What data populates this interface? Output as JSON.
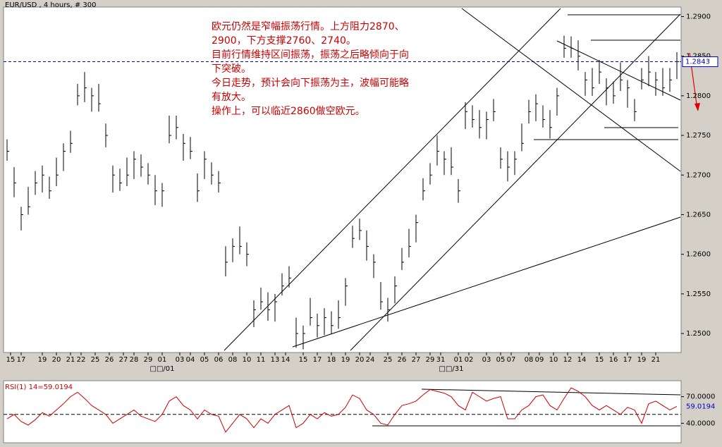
{
  "chart_data": [
    {
      "type": "ohlc",
      "title": "EUR/USD , 4 hours, # 300",
      "annotation": [
        "欧元仍然是窄幅振荡行情。上方阻力2870、",
        "2900，下方支撑2760、2740。",
        "目前行情维持区间振荡，振荡之后略倾向于向",
        "下突破。",
        "今日走势，预计会向下振荡为主，波幅可能略",
        "有放大。",
        "操作上，可以临近2860做空欧元。"
      ],
      "color": "#000000",
      "last_color": "#0000cc",
      "ylim": [
        1.2476,
        1.2912
      ],
      "yticks": [
        {
          "value": 1.25,
          "label": "1.2500"
        },
        {
          "value": 1.255,
          "label": "1.2550"
        },
        {
          "value": 1.26,
          "label": "1.2600"
        },
        {
          "value": 1.265,
          "label": "1.2650"
        },
        {
          "value": 1.27,
          "label": "1.2700"
        },
        {
          "value": 1.275,
          "label": "1.2750"
        },
        {
          "value": 1.28,
          "label": "1.2800"
        },
        {
          "value": 1.285,
          "label": "1.2850"
        },
        {
          "value": 1.29,
          "label": "1.2900"
        }
      ],
      "xticks": [
        {
          "value": 0.5,
          "label": "15"
        },
        {
          "value": 2,
          "label": "17"
        },
        {
          "value": 5,
          "label": "19"
        },
        {
          "value": 7,
          "label": "20"
        },
        {
          "value": 9,
          "label": "21"
        },
        {
          "value": 10.5,
          "label": "22"
        },
        {
          "value": 12.5,
          "label": "25"
        },
        {
          "value": 14.5,
          "label": "26"
        },
        {
          "value": 16.5,
          "label": "27"
        },
        {
          "value": 18,
          "label": "28"
        },
        {
          "value": 20,
          "label": "29"
        },
        {
          "value": 22,
          "label": "01"
        },
        {
          "value": 24.5,
          "label": "03"
        },
        {
          "value": 26,
          "label": "04"
        },
        {
          "value": 28,
          "label": "05"
        },
        {
          "value": 30,
          "label": "06"
        },
        {
          "value": 32,
          "label": "08"
        },
        {
          "value": 34,
          "label": "10"
        },
        {
          "value": 36,
          "label": "11"
        },
        {
          "value": 38,
          "label": "13"
        },
        {
          "value": 39.5,
          "label": "14"
        },
        {
          "value": 42,
          "label": "15"
        },
        {
          "value": 44,
          "label": "17"
        },
        {
          "value": 46,
          "label": "18"
        },
        {
          "value": 48,
          "label": "19"
        },
        {
          "value": 50,
          "label": "20"
        },
        {
          "value": 51.5,
          "label": "24"
        },
        {
          "value": 54,
          "label": "25"
        },
        {
          "value": 56,
          "label": "26"
        },
        {
          "value": 58,
          "label": "27"
        },
        {
          "value": 60,
          "label": "29"
        },
        {
          "value": 61.5,
          "label": "31"
        },
        {
          "value": 64,
          "label": "01"
        },
        {
          "value": 65.5,
          "label": "02"
        },
        {
          "value": 68,
          "label": "03"
        },
        {
          "value": 70,
          "label": "05"
        },
        {
          "value": 71.5,
          "label": "07"
        },
        {
          "value": 74,
          "label": "08"
        },
        {
          "value": 75.5,
          "label": "09"
        },
        {
          "value": 77.5,
          "label": "10"
        },
        {
          "value": 79.5,
          "label": "12"
        },
        {
          "value": 81.5,
          "label": "14"
        },
        {
          "value": 84,
          "label": "15"
        },
        {
          "value": 86,
          "label": "16"
        },
        {
          "value": 88,
          "label": "17"
        },
        {
          "value": 90,
          "label": "19"
        },
        {
          "value": 92,
          "label": "21"
        }
      ],
      "xticks2": [
        {
          "value": 22,
          "label": "□□/01"
        },
        {
          "value": 63,
          "label": "□□/31"
        }
      ],
      "high": [
        1.2745,
        1.271,
        1.266,
        1.2685,
        1.2705,
        1.2712,
        1.2698,
        1.2722,
        1.274,
        1.2756,
        1.2815,
        1.283,
        1.281,
        1.2815,
        1.2765,
        1.2712,
        1.2708,
        1.2722,
        1.273,
        1.2726,
        1.2715,
        1.27,
        1.269,
        1.2775,
        1.2775,
        1.2752,
        1.2748,
        1.2702,
        1.273,
        1.2716,
        1.2705,
        1.261,
        1.262,
        1.2635,
        1.2615,
        1.2542,
        1.2558,
        1.2552,
        1.255,
        1.2576,
        1.2585,
        1.252,
        1.251,
        1.2545,
        1.2525,
        1.2532,
        1.2528,
        1.2542,
        1.257,
        1.2636,
        1.2645,
        1.263,
        1.26,
        1.2565,
        1.2545,
        1.2572,
        1.2608,
        1.2632,
        1.265,
        1.2696,
        1.2715,
        1.275,
        1.273,
        1.2735,
        1.2695,
        1.2792,
        1.2788,
        1.2782,
        1.278,
        1.2796,
        1.2735,
        1.273,
        1.273,
        1.2765,
        1.2795,
        1.2802,
        1.2788,
        1.2782,
        1.281,
        1.2876,
        1.2875,
        1.287,
        1.283,
        1.2835,
        1.2845,
        1.2822,
        1.2818,
        1.2842,
        1.282,
        1.2796,
        1.2835,
        1.285,
        1.283,
        1.2835,
        1.2835,
        1.2855
      ],
      "low": [
        1.2718,
        1.2672,
        1.263,
        1.265,
        1.2675,
        1.2678,
        1.267,
        1.2686,
        1.2705,
        1.2728,
        1.2788,
        1.2792,
        1.278,
        1.278,
        1.2735,
        1.2678,
        1.268,
        1.2686,
        1.2695,
        1.2698,
        1.2688,
        1.2662,
        1.266,
        1.274,
        1.2745,
        1.2718,
        1.272,
        1.2666,
        1.2695,
        1.2688,
        1.2678,
        1.2572,
        1.259,
        1.26,
        1.2585,
        1.2508,
        1.253,
        1.2516,
        1.2515,
        1.2548,
        1.2558,
        1.2482,
        1.248,
        1.251,
        1.2495,
        1.2498,
        1.25,
        1.2506,
        1.2535,
        1.2608,
        1.2618,
        1.2592,
        1.257,
        1.253,
        1.2515,
        1.2538,
        1.258,
        1.2596,
        1.2615,
        1.2668,
        1.2688,
        1.2712,
        1.27,
        1.27,
        1.2665,
        1.2758,
        1.276,
        1.2746,
        1.2745,
        1.2768,
        1.2708,
        1.2692,
        1.27,
        1.273,
        1.2765,
        1.2768,
        1.276,
        1.2746,
        1.2775,
        1.2848,
        1.2848,
        1.2832,
        1.28,
        1.28,
        1.2815,
        1.2788,
        1.279,
        1.2806,
        1.2785,
        1.2768,
        1.2808,
        1.2812,
        1.28,
        1.28,
        1.2805,
        1.2821
      ],
      "close": [
        1.273,
        1.269,
        1.265,
        1.266,
        1.269,
        1.27,
        1.268,
        1.27,
        1.273,
        1.274,
        1.28,
        1.281,
        1.28,
        1.279,
        1.275,
        1.27,
        1.269,
        1.27,
        1.272,
        1.271,
        1.27,
        1.268,
        1.268,
        1.275,
        1.276,
        1.274,
        1.273,
        1.268,
        1.272,
        1.27,
        1.269,
        1.259,
        1.261,
        1.261,
        1.26,
        1.253,
        1.254,
        1.253,
        1.254,
        1.256,
        1.257,
        1.25,
        1.25,
        1.252,
        1.251,
        1.252,
        1.251,
        1.252,
        1.256,
        1.262,
        1.263,
        1.261,
        1.259,
        1.254,
        1.253,
        1.256,
        1.259,
        1.261,
        1.264,
        1.268,
        1.27,
        1.273,
        1.272,
        1.271,
        1.268,
        1.278,
        1.277,
        1.276,
        1.277,
        1.278,
        1.272,
        1.271,
        1.272,
        1.274,
        1.278,
        1.279,
        1.277,
        1.276,
        1.28,
        1.286,
        1.286,
        1.285,
        1.282,
        1.281,
        1.283,
        1.281,
        1.28,
        1.282,
        1.281,
        1.278,
        1.282,
        1.283,
        1.282,
        1.281,
        1.282,
        1.2843
      ]
    },
    {
      "type": "line",
      "title": "RSI(1) 14=59.0194",
      "color": "#cc0000",
      "last_color": "#0000cc",
      "ylim": [
        18,
        88
      ],
      "yticks": [
        {
          "value": 70,
          "label": "70.0000"
        },
        {
          "value": 40,
          "label": "40.0000"
        }
      ],
      "reference_line": 50,
      "values": [
        45,
        50,
        42,
        38,
        44,
        52,
        48,
        55,
        62,
        70,
        75,
        68,
        60,
        55,
        50,
        40,
        45,
        50,
        55,
        48,
        45,
        42,
        50,
        65,
        70,
        60,
        55,
        45,
        55,
        50,
        48,
        30,
        40,
        50,
        45,
        35,
        45,
        40,
        50,
        55,
        60,
        35,
        40,
        50,
        45,
        52,
        48,
        50,
        58,
        72,
        68,
        55,
        50,
        40,
        38,
        50,
        60,
        62,
        65,
        72,
        78,
        76,
        74,
        70,
        60,
        55,
        75,
        70,
        65,
        68,
        70,
        45,
        45,
        55,
        60,
        70,
        72,
        60,
        55,
        68,
        80,
        76,
        70,
        60,
        55,
        60,
        55,
        50,
        58,
        55,
        40,
        62,
        65,
        60,
        55,
        59.0194
      ]
    }
  ]
}
